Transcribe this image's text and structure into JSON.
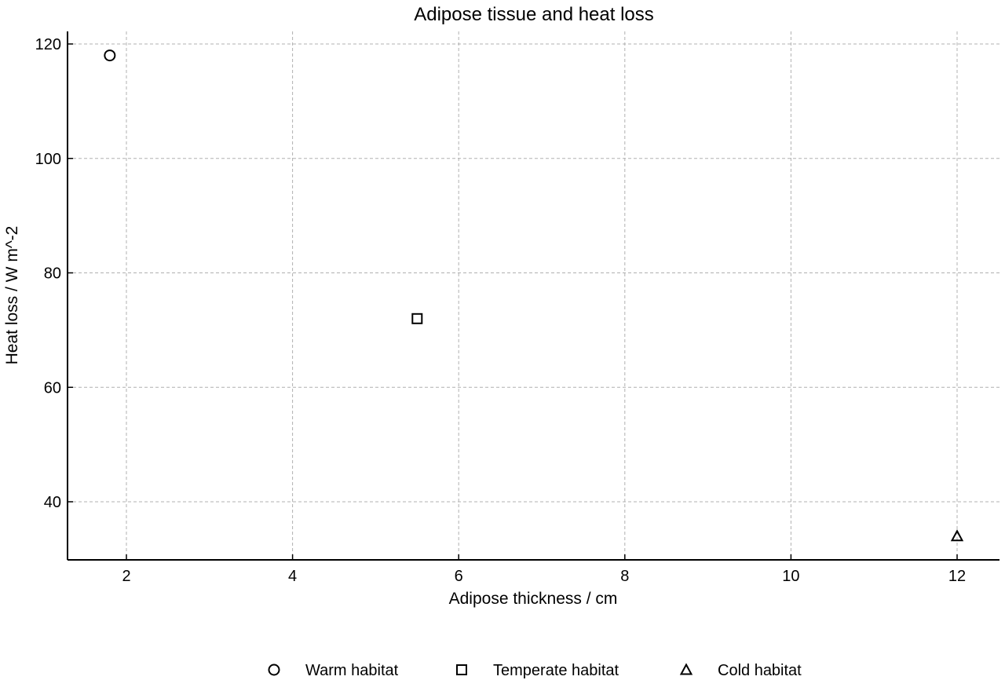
{
  "chart_data": {
    "type": "scatter",
    "title": "Adipose tissue and heat loss",
    "xlabel": "Adipose thickness / cm",
    "ylabel": "Heat loss / W m^-2",
    "xlim": [
      1.3,
      12.5
    ],
    "ylim": [
      30,
      122
    ],
    "xticks": [
      2,
      4,
      6,
      8,
      10,
      12
    ],
    "yticks": [
      40,
      60,
      80,
      100,
      120
    ],
    "grid": true,
    "legend_position": "bottom",
    "series": [
      {
        "name": "Warm habitat",
        "marker": "circle",
        "color": "#000000",
        "points": [
          {
            "x": 1.8,
            "y": 118
          }
        ]
      },
      {
        "name": "Temperate habitat",
        "marker": "square",
        "color": "#000000",
        "points": [
          {
            "x": 5.5,
            "y": 72
          }
        ]
      },
      {
        "name": "Cold habitat",
        "marker": "triangle",
        "color": "#000000",
        "points": [
          {
            "x": 12,
            "y": 34
          }
        ]
      }
    ]
  }
}
